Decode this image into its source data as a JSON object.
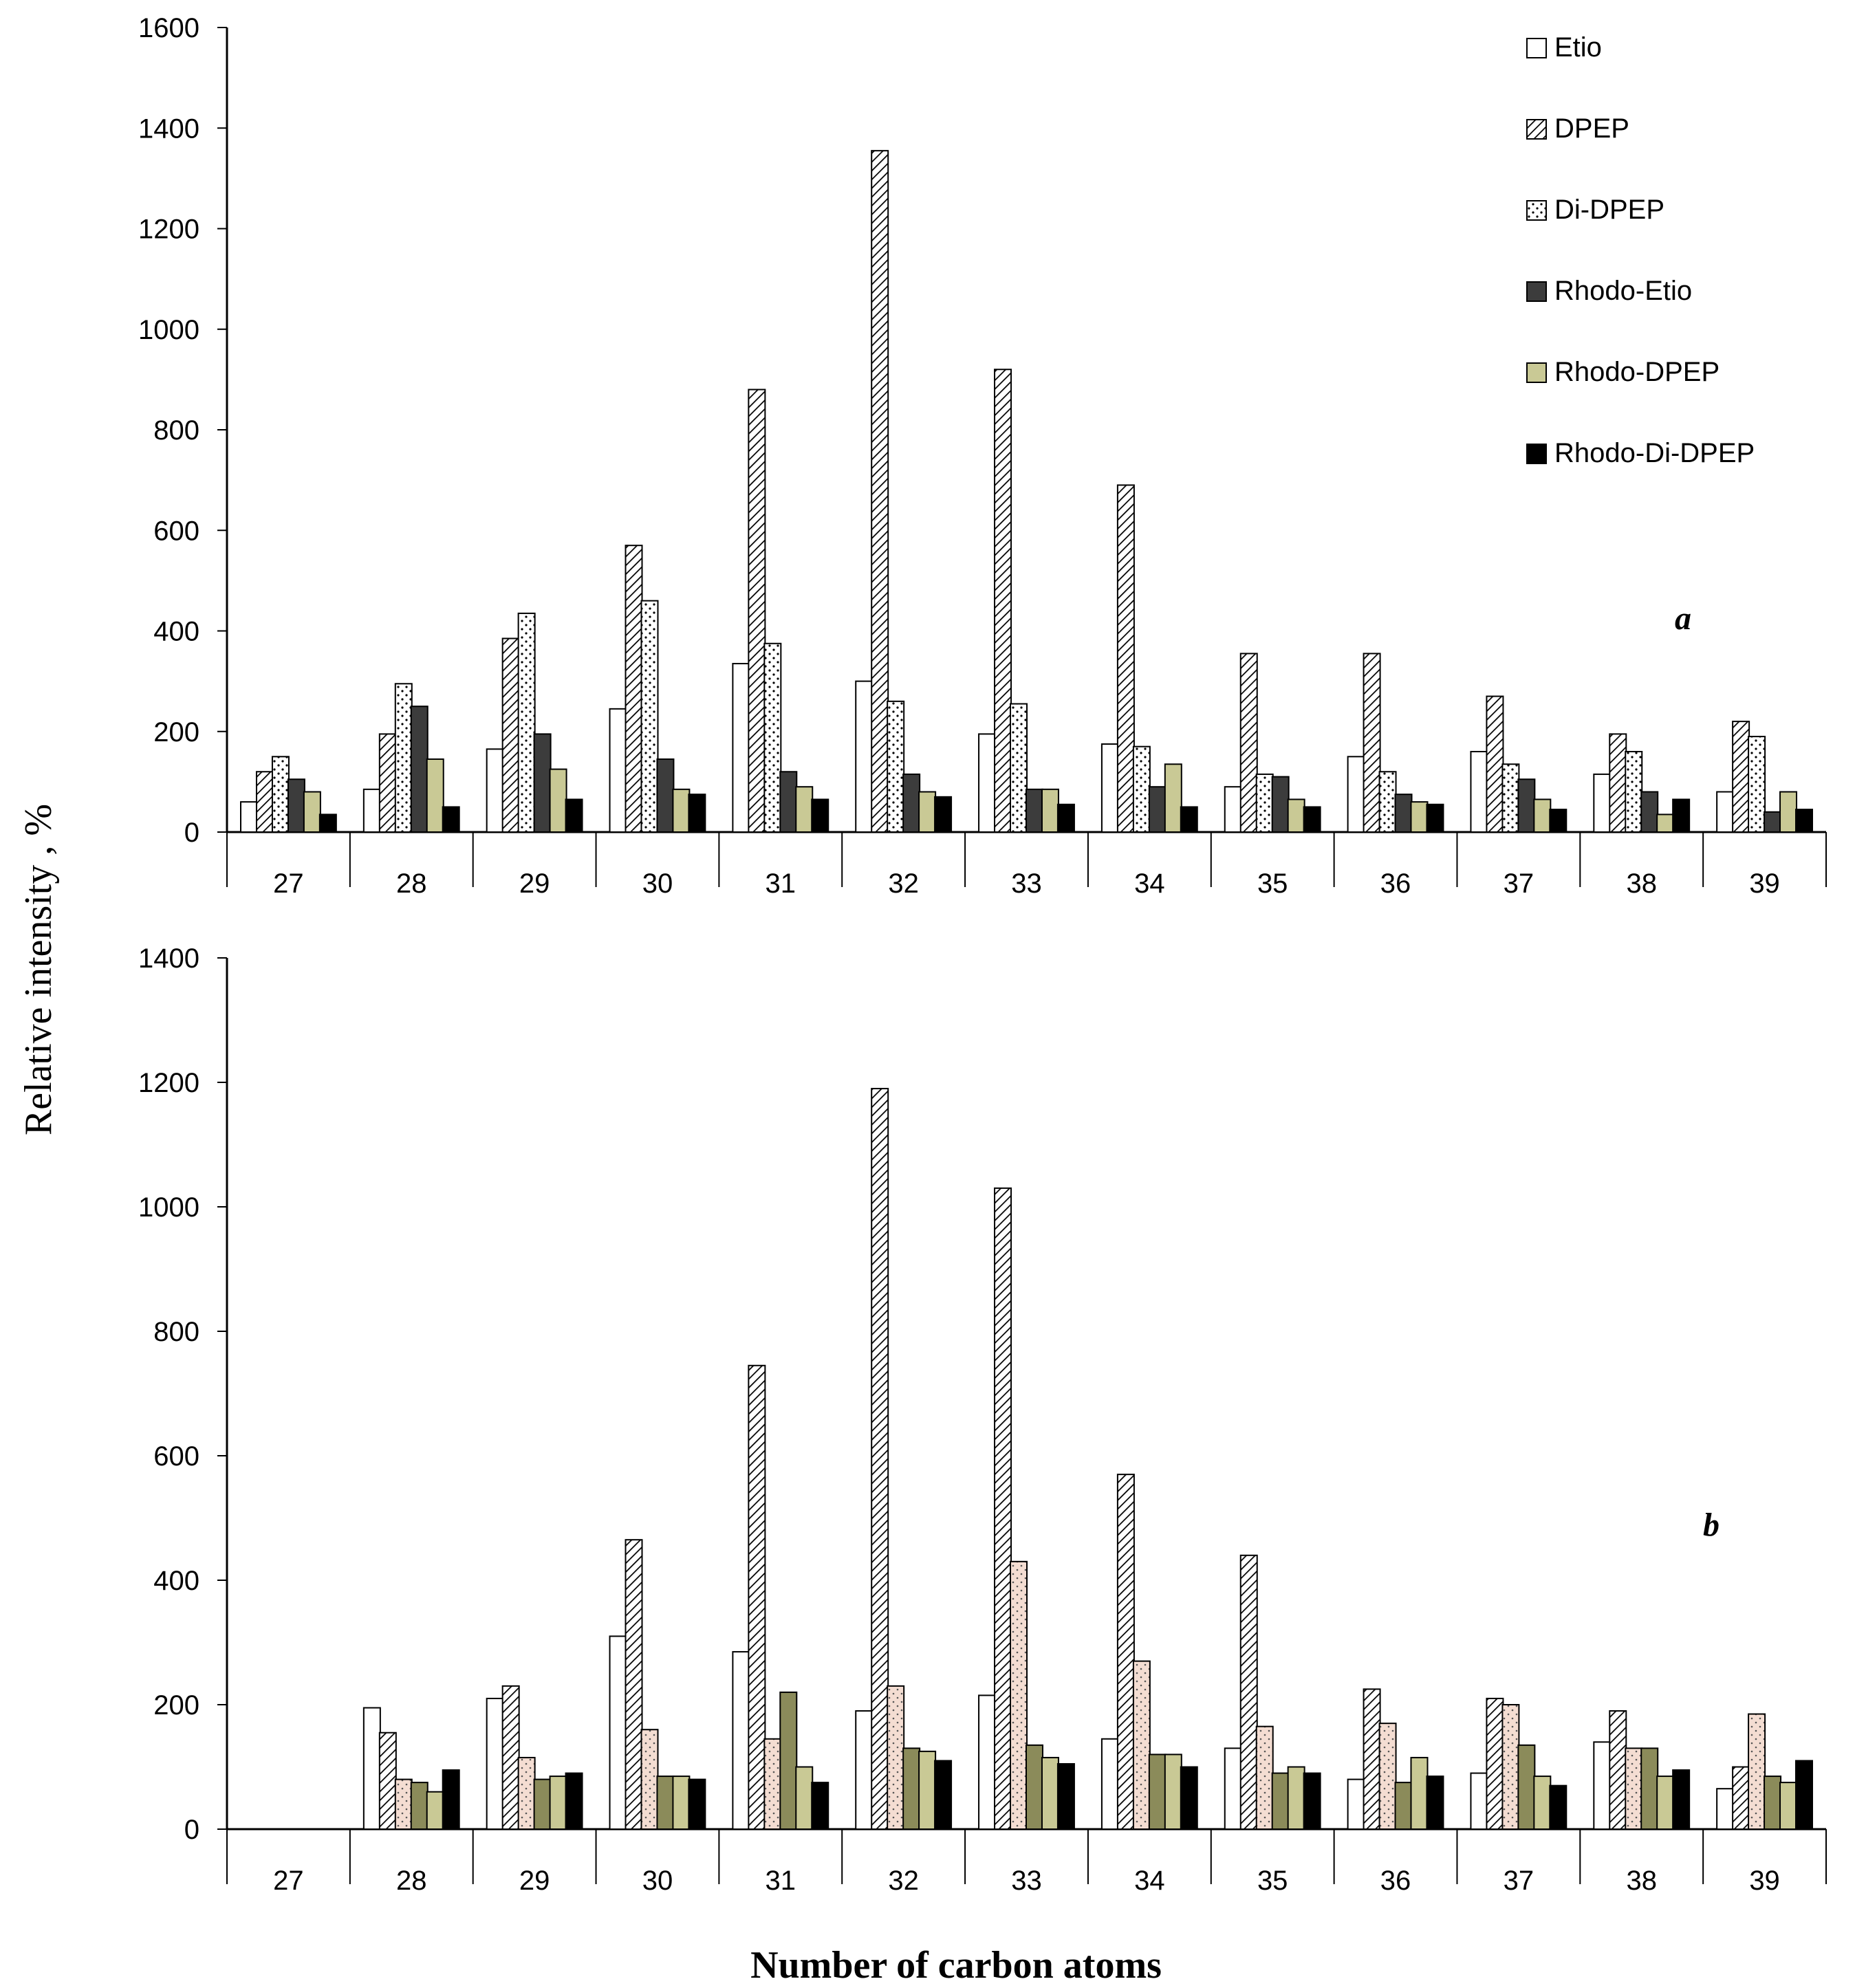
{
  "chart_data": [
    {
      "type": "bar",
      "panel_label": "a",
      "categories": [
        "27",
        "28",
        "29",
        "30",
        "31",
        "32",
        "33",
        "34",
        "35",
        "36",
        "37",
        "38",
        "39"
      ],
      "ylim": [
        0,
        1600
      ],
      "yticks": [
        "0",
        "200",
        "400",
        "600",
        "800",
        "1000",
        "1200",
        "1400",
        "1600"
      ],
      "series": [
        {
          "name": "Etio",
          "pattern": "white",
          "values": [
            60,
            85,
            165,
            245,
            335,
            300,
            195,
            175,
            90,
            150,
            160,
            115,
            80
          ]
        },
        {
          "name": "DPEP",
          "pattern": "hatch",
          "values": [
            120,
            195,
            385,
            570,
            880,
            1355,
            920,
            690,
            355,
            355,
            270,
            195,
            220
          ]
        },
        {
          "name": "Di-DPEP",
          "pattern": "dots",
          "values": [
            150,
            295,
            435,
            460,
            375,
            260,
            255,
            170,
            115,
            120,
            135,
            160,
            190
          ]
        },
        {
          "name": "Rhodo-Etio",
          "pattern": "dark",
          "values": [
            105,
            250,
            195,
            145,
            120,
            115,
            85,
            90,
            110,
            75,
            105,
            80,
            40
          ]
        },
        {
          "name": "Rhodo-DPEP",
          "pattern": "khaki",
          "values": [
            80,
            145,
            125,
            85,
            90,
            80,
            85,
            135,
            65,
            60,
            65,
            35,
            80
          ]
        },
        {
          "name": "Rhodo-Di-DPEP",
          "pattern": "black",
          "values": [
            35,
            50,
            65,
            75,
            65,
            70,
            55,
            50,
            50,
            55,
            45,
            65,
            45
          ]
        }
      ],
      "legend": [
        "Etio",
        "DPEP",
        "Di-DPEP",
        "Rhodo-Etio",
        "Rhodo-DPEP",
        "Rhodo-Di-DPEP"
      ],
      "legend_position": "top-right"
    },
    {
      "type": "bar",
      "panel_label": "b",
      "categories": [
        "27",
        "28",
        "29",
        "30",
        "31",
        "32",
        "33",
        "34",
        "35",
        "36",
        "37",
        "38",
        "39"
      ],
      "ylim": [
        0,
        1400
      ],
      "yticks": [
        "0",
        "200",
        "400",
        "600",
        "800",
        "1000",
        "1200",
        "1400"
      ],
      "series": [
        {
          "name": "Etio",
          "pattern": "white",
          "values": [
            0,
            195,
            210,
            310,
            285,
            190,
            215,
            145,
            130,
            80,
            90,
            140,
            65
          ]
        },
        {
          "name": "DPEP",
          "pattern": "hatch",
          "values": [
            0,
            155,
            230,
            465,
            745,
            1190,
            1030,
            570,
            440,
            225,
            210,
            190,
            100
          ]
        },
        {
          "name": "Di-DPEP",
          "pattern": "pink",
          "values": [
            0,
            80,
            115,
            160,
            145,
            230,
            430,
            270,
            165,
            170,
            200,
            130,
            185
          ]
        },
        {
          "name": "Rhodo-Etio",
          "pattern": "olive",
          "values": [
            0,
            75,
            80,
            85,
            220,
            130,
            135,
            120,
            90,
            75,
            135,
            130,
            85
          ]
        },
        {
          "name": "Rhodo-DPEP",
          "pattern": "khaki",
          "values": [
            0,
            60,
            85,
            85,
            100,
            125,
            115,
            120,
            100,
            115,
            85,
            85,
            75
          ]
        },
        {
          "name": "Rhodo-Di-DPEP",
          "pattern": "black",
          "values": [
            0,
            95,
            90,
            80,
            75,
            110,
            105,
            100,
            90,
            85,
            70,
            95,
            110
          ]
        }
      ]
    }
  ],
  "labels": {
    "ylabel": "Relative intensity , %",
    "xlabel": "Number of carbon atoms"
  },
  "colors": {
    "white": "#ffffff",
    "dark": "#3c3c3c",
    "khaki": "#c9c995",
    "black": "#000000",
    "pink": "#f4ddd2",
    "olive": "#8b8b5a"
  }
}
